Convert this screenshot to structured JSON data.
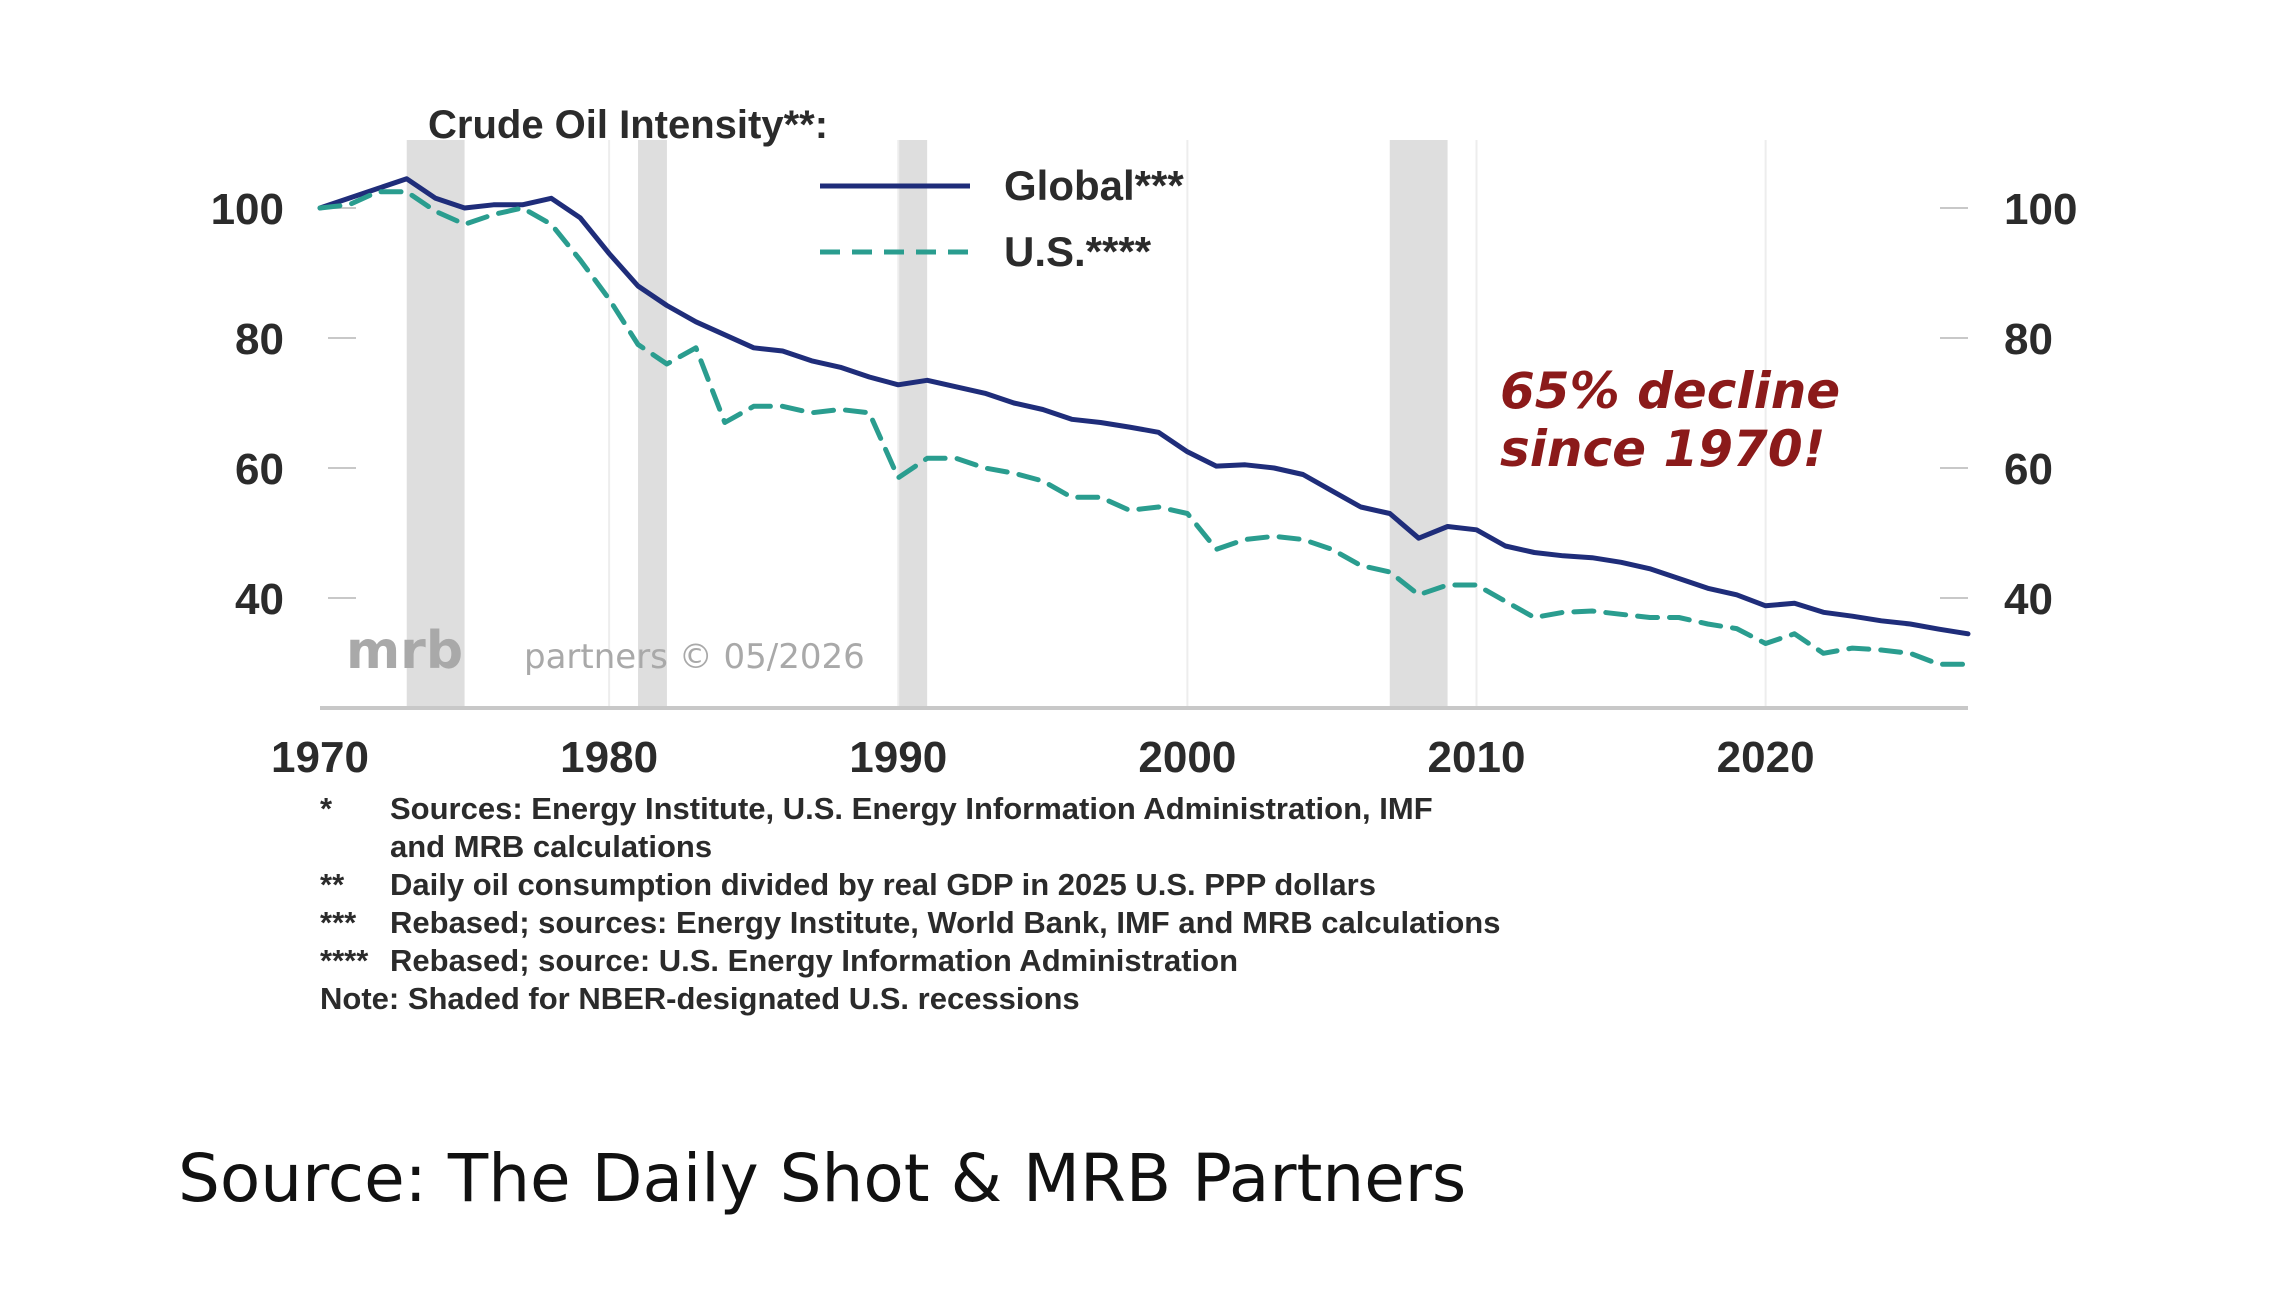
{
  "chart_data": {
    "type": "line",
    "title": "Crude Oil Intensity**:",
    "xlim": [
      1970,
      2027
    ],
    "ylim": [
      27,
      111
    ],
    "x_ticks": [
      1970,
      1980,
      1990,
      2000,
      2010,
      2020
    ],
    "y_ticks": [
      40,
      60,
      80,
      100
    ],
    "x_tick_labels": [
      "1970",
      "1980",
      "1990",
      "2000",
      "2010",
      "2020"
    ],
    "y_tick_labels": [
      "40",
      "60",
      "80",
      "100"
    ],
    "y_axis_sides": "both",
    "legend_position": "top-center",
    "recessions": [
      [
        1973,
        1975
      ],
      [
        1981,
        1982
      ],
      [
        1990,
        1991
      ],
      [
        2007,
        2009
      ]
    ],
    "recession_color": "#dedede",
    "annotation": [
      "65% decline",
      "since 1970!"
    ],
    "annotation_color": "#8b1a1a",
    "watermark": {
      "brand": "mrb",
      "text": "partners © 05/2026"
    },
    "series": [
      {
        "name": "Global***",
        "color": "#1f2d7a",
        "style": "solid",
        "x": [
          1970,
          1971,
          1972,
          1973,
          1974,
          1975,
          1976,
          1977,
          1978,
          1979,
          1980,
          1981,
          1982,
          1983,
          1984,
          1985,
          1986,
          1987,
          1988,
          1989,
          1990,
          1991,
          1992,
          1993,
          1994,
          1995,
          1996,
          1997,
          1998,
          1999,
          2000,
          2001,
          2002,
          2003,
          2004,
          2005,
          2006,
          2007,
          2008,
          2009,
          2010,
          2011,
          2012,
          2013,
          2014,
          2015,
          2016,
          2017,
          2018,
          2019,
          2020,
          2021,
          2022,
          2023,
          2024,
          2025,
          2026,
          2027
        ],
        "values": [
          100,
          101.5,
          103,
          104.5,
          101.5,
          100,
          100.5,
          100.5,
          101.5,
          98.5,
          93,
          88,
          85,
          82.5,
          80.5,
          78.5,
          78,
          76.5,
          75.5,
          74,
          72.8,
          73.5,
          72.5,
          71.5,
          70,
          69,
          67.5,
          67,
          66.3,
          65.5,
          62.5,
          60.3,
          60.5,
          60,
          59,
          56.5,
          54,
          53,
          49.2,
          51,
          50.5,
          48,
          47,
          46.5,
          46.2,
          45.5,
          44.5,
          43,
          41.5,
          40.5,
          38.8,
          39.2,
          37.8,
          37.2,
          36.5,
          36,
          35.2,
          34.5
        ]
      },
      {
        "name": "U.S.****",
        "color": "#2a9d8f",
        "style": "dashed",
        "x": [
          1970,
          1971,
          1972,
          1973,
          1974,
          1975,
          1976,
          1977,
          1978,
          1979,
          1980,
          1981,
          1982,
          1983,
          1984,
          1985,
          1986,
          1987,
          1988,
          1989,
          1990,
          1991,
          1992,
          1993,
          1994,
          1995,
          1996,
          1997,
          1998,
          1999,
          2000,
          2001,
          2002,
          2003,
          2004,
          2005,
          2006,
          2007,
          2008,
          2009,
          2010,
          2011,
          2012,
          2013,
          2014,
          2015,
          2016,
          2017,
          2018,
          2019,
          2020,
          2021,
          2022,
          2023,
          2024,
          2025,
          2026,
          2027
        ],
        "values": [
          100,
          100.5,
          102.5,
          102.5,
          99.5,
          97.5,
          99,
          100,
          97.5,
          92,
          86,
          79,
          76,
          78.5,
          67,
          69.5,
          69.5,
          68.5,
          69,
          68.5,
          58.5,
          61.5,
          61.5,
          60,
          59.2,
          58,
          55.5,
          55.5,
          53.5,
          54,
          53,
          47.5,
          49,
          49.5,
          49,
          47.5,
          45,
          44,
          40.5,
          42,
          42,
          39.5,
          37,
          37.8,
          38,
          37.5,
          37,
          37,
          36,
          35.3,
          33,
          34.5,
          31.5,
          32.3,
          32,
          31.5,
          29.8,
          29.8
        ]
      }
    ]
  },
  "footnotes": [
    {
      "marker": "*",
      "text": "Sources: Energy Institute, U.S. Energy Information Administration, IMF",
      "continuation": "and MRB calculations"
    },
    {
      "marker": "**",
      "text": "Daily oil consumption divided by real GDP in 2025 U.S. PPP dollars"
    },
    {
      "marker": "***",
      "text": "Rebased; sources: Energy Institute, World Bank, IMF and MRB calculations"
    },
    {
      "marker": "****",
      "text": "Rebased; source: U.S. Energy Information Administration"
    }
  ],
  "note": "Note: Shaded for NBER-designated U.S. recessions",
  "source": "Source: The Daily Shot & MRB Partners"
}
